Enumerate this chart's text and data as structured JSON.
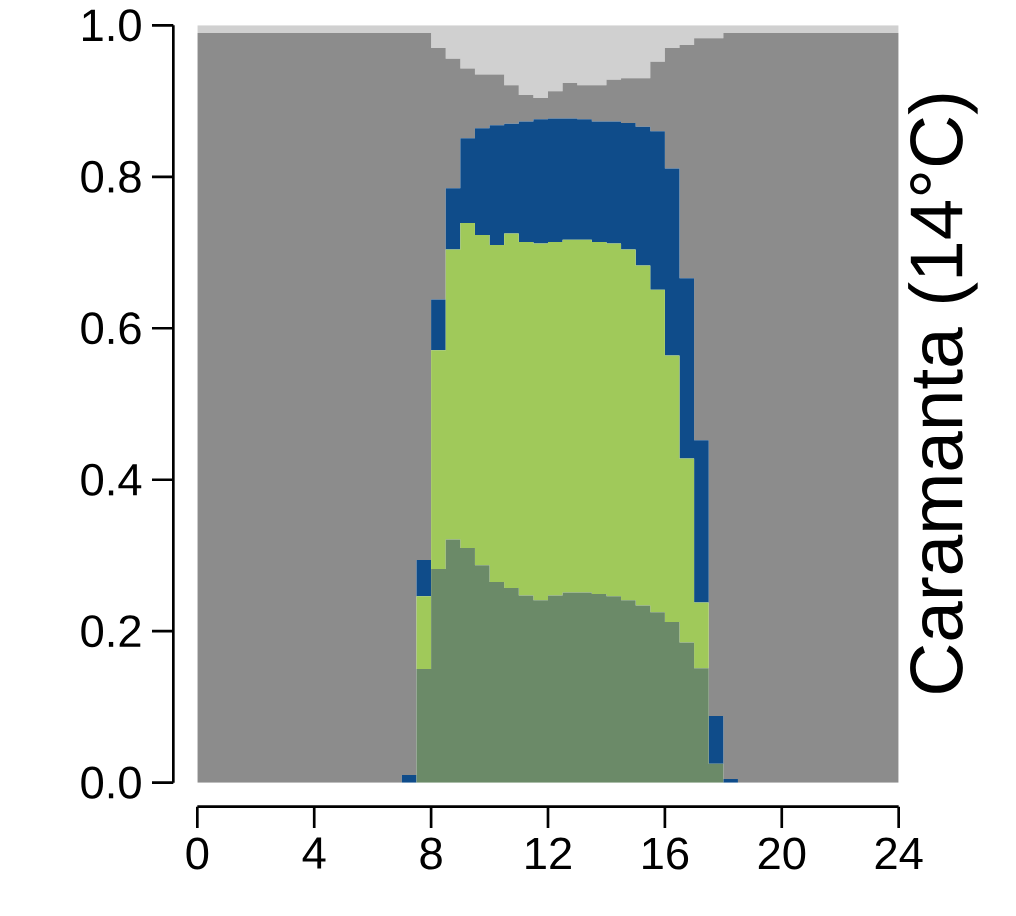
{
  "chart_data": {
    "type": "area",
    "stacked": true,
    "ylabel": "Caramanta (14°C)",
    "x": [
      0,
      0.5,
      1,
      1.5,
      2,
      2.5,
      3,
      3.5,
      4,
      4.5,
      5,
      5.5,
      6,
      6.5,
      7,
      7.5,
      8,
      8.5,
      9,
      9.5,
      10,
      10.5,
      11,
      11.5,
      12,
      12.5,
      13,
      13.5,
      14,
      14.5,
      15,
      15.5,
      16,
      16.5,
      17,
      17.5,
      18,
      18.5,
      19,
      19.5,
      20,
      20.5,
      21,
      21.5,
      22,
      22.5,
      23,
      23.5,
      24
    ],
    "xlim": [
      0,
      24
    ],
    "xticks": [
      0,
      4,
      8,
      12,
      16,
      20,
      24
    ],
    "ylim": [
      0,
      1
    ],
    "yticks": [
      {
        "value": 0,
        "label": "0.0"
      },
      0.2,
      0.4,
      0.6,
      0.8,
      {
        "value": 1,
        "label": "1.0"
      }
    ],
    "series": [
      {
        "color": "#6b8a68",
        "values": [
          0,
          0,
          0,
          0,
          0,
          0,
          0,
          0,
          0,
          0,
          0,
          0,
          0,
          0,
          0,
          0.15,
          0.282,
          0.321,
          0.31,
          0.287,
          0.265,
          0.257,
          0.247,
          0.241,
          0.247,
          0.251,
          0.251,
          0.249,
          0.246,
          0.241,
          0.234,
          0.225,
          0.212,
          0.185,
          0.151,
          0.025,
          0,
          0,
          0,
          0,
          0,
          0,
          0,
          0,
          0,
          0,
          0,
          0,
          0
        ]
      },
      {
        "color": "#a0c95a",
        "values": [
          0,
          0,
          0,
          0,
          0,
          0,
          0,
          0,
          0,
          0,
          0,
          0,
          0,
          0,
          0,
          0.096,
          0.289,
          0.383,
          0.429,
          0.436,
          0.445,
          0.468,
          0.467,
          0.471,
          0.467,
          0.466,
          0.466,
          0.465,
          0.466,
          0.463,
          0.449,
          0.426,
          0.352,
          0.243,
          0.087,
          0,
          0,
          0,
          0,
          0,
          0,
          0,
          0,
          0,
          0,
          0,
          0,
          0,
          0
        ]
      },
      {
        "color": "#0f4c8a",
        "values": [
          0,
          0,
          0,
          0,
          0,
          0,
          0,
          0,
          0,
          0,
          0,
          0,
          0,
          0,
          0.01,
          0.048,
          0.067,
          0.081,
          0.112,
          0.141,
          0.158,
          0.145,
          0.159,
          0.164,
          0.163,
          0.16,
          0.159,
          0.159,
          0.161,
          0.167,
          0.183,
          0.209,
          0.247,
          0.238,
          0.214,
          0.063,
          0.005,
          0,
          0,
          0,
          0,
          0,
          0,
          0,
          0,
          0,
          0,
          0,
          0
        ]
      },
      {
        "color": "#8c8c8c",
        "values": [
          0.99,
          0.99,
          0.99,
          0.99,
          0.99,
          0.99,
          0.99,
          0.99,
          0.99,
          0.99,
          0.99,
          0.99,
          0.99,
          0.99,
          0.98,
          0.696,
          0.332,
          0.171,
          0.092,
          0.071,
          0.067,
          0.051,
          0.035,
          0.028,
          0.036,
          0.047,
          0.045,
          0.048,
          0.055,
          0.059,
          0.064,
          0.092,
          0.159,
          0.308,
          0.531,
          0.895,
          0.985,
          0.99,
          0.99,
          0.99,
          0.99,
          0.99,
          0.99,
          0.99,
          0.99,
          0.99,
          0.99,
          0.99,
          0.99
        ]
      },
      {
        "color": "#d0d0d0",
        "values": [
          0.01,
          0.01,
          0.01,
          0.01,
          0.01,
          0.01,
          0.01,
          0.01,
          0.01,
          0.01,
          0.01,
          0.01,
          0.01,
          0.01,
          0.01,
          0.01,
          0.03,
          0.044,
          0.057,
          0.065,
          0.065,
          0.079,
          0.092,
          0.096,
          0.087,
          0.076,
          0.079,
          0.079,
          0.072,
          0.07,
          0.07,
          0.048,
          0.03,
          0.026,
          0.017,
          0.017,
          0.01,
          0.01,
          0.01,
          0.01,
          0.01,
          0.01,
          0.01,
          0.01,
          0.01,
          0.01,
          0.01,
          0.01,
          0.01
        ]
      }
    ]
  }
}
